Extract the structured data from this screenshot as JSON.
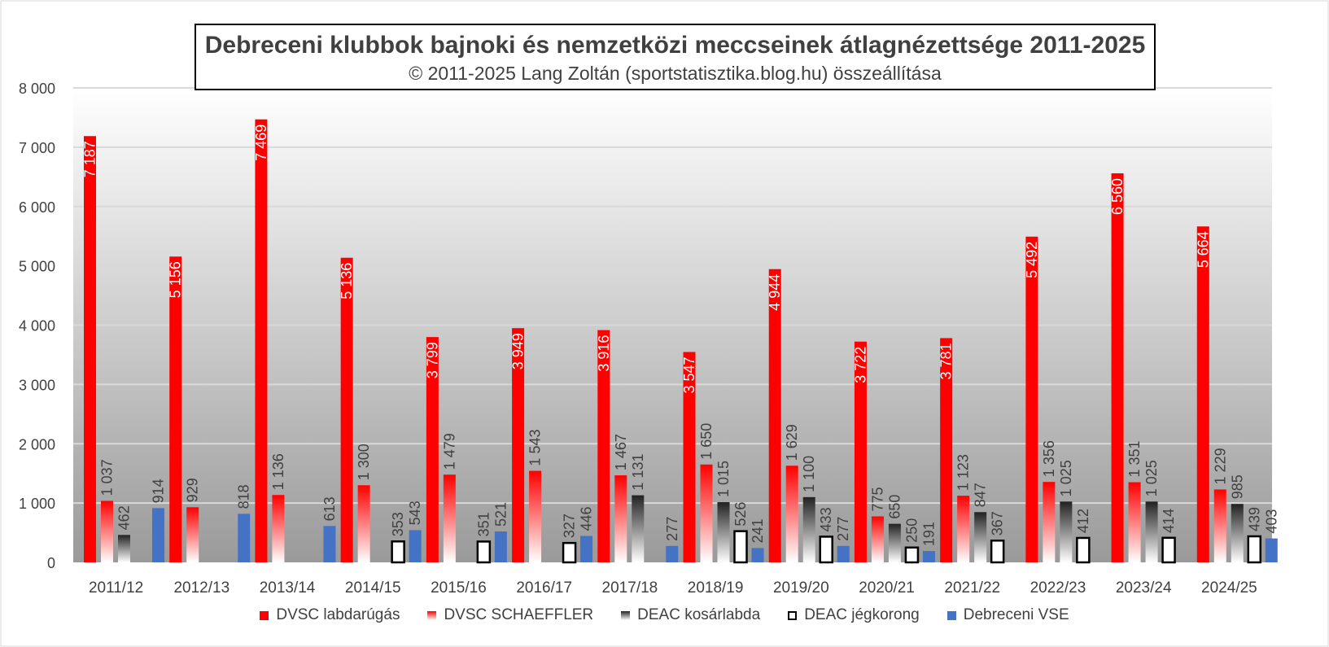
{
  "chart_data": {
    "type": "bar",
    "title": "Debreceni klubbok bajnoki és nemzetközi meccseinek átlagnézettsége 2011-2025",
    "subtitle": "© 2011-2025 Lang Zoltán (sportstatisztika.blog.hu) összeállítása",
    "xlabel": "",
    "ylabel": "",
    "ylim": [
      0,
      8000
    ],
    "yticks": [
      0,
      1000,
      2000,
      3000,
      4000,
      5000,
      6000,
      7000,
      8000
    ],
    "ytick_labels": [
      "0",
      "1 000",
      "2 000",
      "3 000",
      "4 000",
      "5 000",
      "6 000",
      "7 000",
      "8 000"
    ],
    "grid": true,
    "legend_position": "bottom",
    "categories": [
      "2011/12",
      "2012/13",
      "2013/14",
      "2014/15",
      "2015/16",
      "2016/17",
      "2017/18",
      "2018/19",
      "2019/20",
      "2020/21",
      "2021/22",
      "2022/23",
      "2023/24",
      "2024/25"
    ],
    "series": [
      {
        "name": "DVSC labdarúgás",
        "color": "#ff0000",
        "values": [
          7187,
          5156,
          7469,
          5136,
          3799,
          3949,
          3916,
          3547,
          4944,
          3722,
          3781,
          5492,
          6560,
          5664
        ],
        "labels": [
          "7 187",
          "5 156",
          "7 469",
          "5 136",
          "3 799",
          "3 949",
          "3 916",
          "3 547",
          "4 944",
          "3 722",
          "3 781",
          "5 492",
          "6 560",
          "5 664"
        ]
      },
      {
        "name": "DVSC SCHAEFFLER",
        "color": "#ff2020",
        "values": [
          1037,
          929,
          1136,
          1300,
          1479,
          1543,
          1467,
          1650,
          1629,
          775,
          1123,
          1356,
          1351,
          1229
        ],
        "labels": [
          "1 037",
          "929",
          "1 136",
          "1 300",
          "1 479",
          "1 543",
          "1 467",
          "1 650",
          "1 629",
          "775",
          "1 123",
          "1 356",
          "1 351",
          "1 229"
        ]
      },
      {
        "name": "DEAC kosárlabda",
        "color": "#333333",
        "values": [
          462,
          null,
          null,
          null,
          null,
          null,
          1131,
          1015,
          1100,
          650,
          847,
          1025,
          1025,
          985
        ],
        "labels": [
          "462",
          "",
          "",
          "",
          "",
          "",
          "1 131",
          "1 015",
          "1 100",
          "650",
          "847",
          "1 025",
          "1 025",
          "985"
        ]
      },
      {
        "name": "DEAC jégkorong",
        "color": "#000000",
        "values": [
          null,
          null,
          null,
          353,
          351,
          327,
          null,
          526,
          433,
          250,
          367,
          412,
          414,
          439
        ],
        "labels": [
          "",
          "",
          "",
          "353",
          "351",
          "327",
          "",
          "526",
          "433",
          "250",
          "367",
          "412",
          "414",
          "439"
        ]
      },
      {
        "name": "Debreceni VSE",
        "color": "#4472c4",
        "values": [
          914,
          818,
          613,
          543,
          521,
          446,
          277,
          241,
          277,
          191,
          null,
          null,
          null,
          403
        ],
        "labels": [
          "914",
          "818",
          "613",
          "543",
          "521",
          "446",
          "277",
          "241",
          "277",
          "191",
          "",
          "",
          "",
          "403"
        ]
      }
    ]
  }
}
